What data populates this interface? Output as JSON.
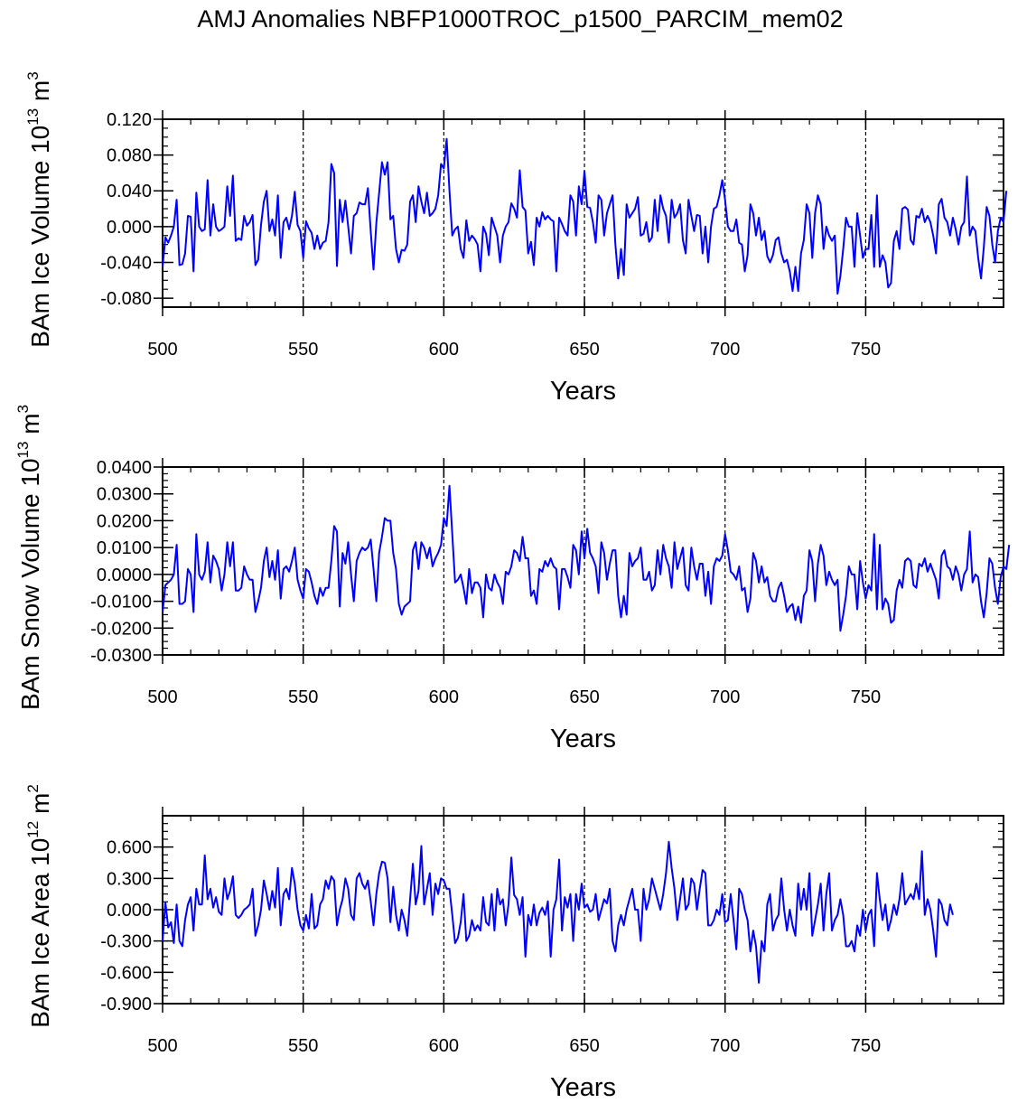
{
  "title": "AMJ Anomalies NBFP1000TROC_p1500_PARCIM_mem02",
  "colors": {
    "line": "#0000ff",
    "axis": "#000000",
    "background": "#ffffff"
  },
  "chart_data": [
    {
      "type": "line",
      "name": "ice-volume",
      "ylabel_main": "BAm Ice Volume 10",
      "ylabel_exp": "13",
      "ylabel_unit": " m",
      "ylabel_unit_exp": "3",
      "xlabel": "Years",
      "xlim": [
        500,
        799
      ],
      "ylim": [
        -0.09,
        0.12
      ],
      "yticks": [
        0.12,
        0.08,
        0.04,
        0.0,
        -0.04,
        -0.08
      ],
      "ytick_labels": [
        "0.120",
        "0.080",
        "0.040",
        "0.000",
        "-0.040",
        "-0.080"
      ],
      "xticks": [
        500,
        550,
        600,
        650,
        700,
        750
      ],
      "xtick_labels": [
        "500",
        "550",
        "600",
        "650",
        "700",
        "750"
      ],
      "vlines": [
        550,
        600,
        650,
        700,
        750
      ],
      "x_start": 500,
      "values": [
        -0.045,
        -0.012,
        -0.018,
        -0.01,
        0.0,
        0.03,
        -0.043,
        -0.042,
        -0.03,
        0.012,
        0.011,
        -0.05,
        0.038,
        0.0,
        -0.005,
        -0.003,
        0.052,
        -0.01,
        0.025,
        0.0,
        -0.005,
        -0.003,
        0.0,
        0.045,
        0.012,
        0.057,
        -0.016,
        -0.013,
        -0.015,
        0.012,
        0.001,
        0.005,
        0.013,
        -0.043,
        -0.037,
        0.002,
        0.028,
        0.04,
        -0.005,
        0.008,
        -0.01,
        0.035,
        -0.035,
        0.005,
        0.01,
        -0.003,
        0.012,
        0.039,
        0.002,
        -0.005,
        -0.035,
        0.006,
        -0.002,
        -0.007,
        -0.025,
        -0.01,
        -0.025,
        -0.018,
        -0.016,
        0.005,
        0.07,
        0.06,
        -0.044,
        0.03,
        0.005,
        0.029,
        0.0,
        -0.03,
        0.012,
        0.015,
        0.027,
        0.025,
        0.025,
        0.043,
        -0.005,
        -0.048,
        0.004,
        0.038,
        0.072,
        0.058,
        0.072,
        0.008,
        0.012,
        -0.025,
        -0.04,
        -0.026,
        -0.027,
        -0.02,
        0.028,
        0.035,
        0.005,
        0.045,
        0.028,
        0.015,
        0.038,
        0.012,
        0.015,
        0.02,
        0.035,
        0.07,
        0.065,
        0.098,
        0.04,
        -0.01,
        -0.003,
        0.0,
        -0.025,
        -0.035,
        0.007,
        -0.016,
        -0.01,
        -0.014,
        -0.02,
        -0.05,
        0.0,
        -0.008,
        -0.032,
        0.01,
        0.0,
        -0.01,
        -0.04,
        -0.01,
        0.0,
        0.005,
        0.026,
        0.02,
        0.01,
        0.063,
        0.022,
        0.018,
        -0.03,
        -0.017,
        -0.043,
        0.01,
        0.0,
        0.016,
        0.008,
        0.012,
        0.008,
        0.006,
        -0.05,
        0.01,
        0.003,
        -0.005,
        -0.01,
        0.035,
        0.028,
        -0.01,
        0.045,
        0.025,
        0.062,
        0.022,
        0.021,
        0.005,
        -0.018,
        0.035,
        0.03,
        -0.01,
        0.015,
        0.025,
        0.035,
        -0.02,
        -0.058,
        -0.025,
        -0.054,
        0.025,
        0.01,
        0.015,
        0.02,
        0.033,
        -0.01,
        -0.008,
        0.005,
        -0.017,
        -0.012,
        0.03,
        -0.005,
        0.035,
        0.02,
        0.012,
        -0.018,
        0.03,
        0.01,
        0.015,
        0.025,
        -0.015,
        -0.03,
        0.03,
        0.012,
        -0.005,
        0.013,
        0.012,
        -0.03,
        0.0,
        -0.04,
        0.0,
        0.02,
        0.022,
        0.035,
        0.052,
        0.03,
        0.0,
        -0.005,
        -0.005,
        0.008,
        -0.018,
        -0.02,
        -0.05,
        -0.032,
        0.025,
        0.015,
        -0.01,
        0.01,
        -0.015,
        -0.005,
        -0.033,
        -0.04,
        -0.032,
        -0.015,
        -0.012,
        -0.03,
        -0.04,
        -0.037,
        -0.05,
        -0.072,
        -0.045,
        -0.072,
        -0.03,
        -0.015,
        0.025,
        0.015,
        -0.035,
        0.015,
        0.035,
        0.025,
        -0.025,
        0.0,
        -0.01,
        -0.016,
        -0.01,
        -0.075,
        -0.055,
        -0.025,
        0.01,
        0.0,
        0.0,
        -0.045,
        0.015,
        -0.01,
        -0.035,
        -0.025,
        -0.025,
        0.013,
        -0.045,
        0.035,
        -0.045,
        -0.032,
        -0.04,
        -0.068,
        -0.063,
        -0.016,
        -0.005,
        -0.025,
        0.02,
        0.022,
        0.019,
        -0.015,
        -0.02,
        0.012,
        0.01,
        0.02,
        0.005,
        0.012,
        0.005,
        -0.01,
        -0.03,
        0.025,
        0.031,
        0.01,
        0.005,
        -0.01,
        0.01,
        -0.003,
        -0.02,
        0.0,
        0.005,
        0.056,
        -0.01,
        0.0,
        -0.005,
        -0.035,
        -0.058,
        -0.023,
        0.022,
        0.012,
        -0.02,
        -0.04,
        -0.005,
        0.01,
        0.005,
        0.04
      ]
    },
    {
      "type": "line",
      "name": "snow-volume",
      "ylabel_main": "BAm Snow Volume 10",
      "ylabel_exp": "13",
      "ylabel_unit": " m",
      "ylabel_unit_exp": "3",
      "xlabel": "Years",
      "xlim": [
        500,
        799
      ],
      "ylim": [
        -0.03,
        0.04
      ],
      "yticks": [
        0.04,
        0.03,
        0.02,
        0.01,
        0.0,
        -0.01,
        -0.02,
        -0.03
      ],
      "ytick_labels": [
        "0.0400",
        "0.0300",
        "0.0200",
        "0.0100",
        "0.0000",
        "-0.0100",
        "-0.0200",
        "-0.0300"
      ],
      "xticks": [
        500,
        550,
        600,
        650,
        700,
        750
      ],
      "xtick_labels": [
        "500",
        "550",
        "600",
        "650",
        "700",
        "750"
      ],
      "vlines": [
        550,
        600,
        650,
        700,
        750
      ],
      "x_start": 500,
      "values": [
        -0.014,
        -0.004,
        -0.003,
        -0.002,
        0.0,
        0.011,
        -0.011,
        -0.011,
        -0.01,
        0.002,
        0.0,
        -0.014,
        0.015,
        0.0,
        -0.002,
        0.001,
        0.012,
        -0.003,
        0.007,
        0.005,
        0.002,
        -0.006,
        0.0,
        0.012,
        0.003,
        0.012,
        -0.006,
        -0.006,
        -0.005,
        0.003,
        0.0,
        -0.002,
        -0.002,
        -0.014,
        -0.01,
        -0.005,
        0.005,
        0.01,
        -0.001,
        0.005,
        -0.002,
        0.009,
        -0.009,
        0.002,
        0.003,
        0.001,
        0.005,
        0.01,
        -0.002,
        -0.006,
        -0.009,
        0.002,
        0.001,
        -0.003,
        -0.008,
        -0.011,
        -0.005,
        -0.008,
        -0.005,
        -0.005,
        0.005,
        0.018,
        0.016,
        -0.012,
        0.008,
        0.004,
        0.012,
        0.0,
        -0.01,
        0.005,
        0.008,
        0.01,
        0.009,
        0.01,
        0.013,
        0.002,
        -0.01,
        0.008,
        0.014,
        0.021,
        0.02,
        0.02,
        0.008,
        0.002,
        -0.011,
        -0.015,
        -0.012,
        -0.011,
        -0.01,
        0.009,
        0.012,
        0.002,
        0.012,
        0.01,
        0.006,
        0.01,
        0.003,
        0.006,
        0.008,
        0.011,
        0.021,
        0.018,
        0.033,
        0.015,
        -0.003,
        -0.002,
        0.0,
        -0.005,
        -0.011,
        0.002,
        -0.007,
        -0.003,
        -0.003,
        -0.005,
        -0.016,
        0.0,
        -0.005,
        -0.006,
        0.0,
        -0.003,
        -0.005,
        -0.011,
        0.001,
        0.0,
        0.003,
        0.009,
        0.008,
        0.005,
        0.014,
        0.006,
        0.006,
        -0.008,
        -0.006,
        -0.011,
        0.002,
        0.001,
        0.005,
        0.003,
        0.006,
        0.003,
        0.002,
        -0.013,
        0.002,
        0.002,
        -0.001,
        -0.005,
        0.011,
        0.009,
        0.0,
        0.016,
        0.006,
        0.017,
        0.008,
        0.006,
        0.003,
        -0.007,
        0.012,
        0.008,
        -0.002,
        0.004,
        0.009,
        0.009,
        -0.008,
        -0.016,
        -0.008,
        -0.015,
        0.008,
        0.003,
        0.005,
        0.006,
        0.01,
        -0.002,
        -0.002,
        0.001,
        -0.006,
        -0.004,
        0.009,
        0.0,
        0.011,
        0.006,
        0.003,
        -0.005,
        0.012,
        0.002,
        0.006,
        0.01,
        -0.004,
        -0.006,
        0.01,
        0.003,
        -0.002,
        0.004,
        0.004,
        -0.008,
        0.001,
        -0.011,
        0.003,
        0.006,
        0.005,
        0.007,
        0.015,
        0.009,
        0.001,
        0.0,
        -0.002,
        0.003,
        -0.006,
        -0.005,
        -0.014,
        -0.009,
        0.008,
        0.005,
        -0.003,
        0.003,
        -0.003,
        -0.001,
        -0.008,
        -0.01,
        -0.01,
        -0.005,
        -0.003,
        -0.008,
        -0.014,
        -0.012,
        -0.011,
        -0.017,
        -0.012,
        -0.018,
        -0.008,
        -0.006,
        0.009,
        0.005,
        -0.01,
        0.004,
        0.011,
        0.007,
        -0.004,
        0.001,
        -0.002,
        -0.004,
        -0.002,
        -0.021,
        -0.015,
        -0.008,
        0.003,
        0.0,
        0.0,
        -0.013,
        0.005,
        -0.003,
        -0.009,
        -0.004,
        -0.006,
        0.015,
        -0.013,
        0.011,
        -0.013,
        -0.009,
        -0.011,
        -0.018,
        -0.017,
        -0.006,
        -0.002,
        -0.005,
        0.005,
        0.006,
        0.005,
        -0.004,
        -0.005,
        0.004,
        0.003,
        0.006,
        0.001,
        0.004,
        0.001,
        -0.002,
        -0.009,
        0.007,
        0.009,
        0.003,
        0.002,
        -0.002,
        0.003,
        0.0,
        -0.006,
        0.0,
        0.002,
        0.016,
        -0.003,
        0.0,
        -0.001,
        -0.01,
        -0.016,
        -0.007,
        0.006,
        0.004,
        -0.005,
        -0.011,
        -0.001,
        0.003,
        0.002,
        0.011
      ]
    },
    {
      "type": "line",
      "name": "ice-area",
      "ylabel_main": "BAm Ice Area 10",
      "ylabel_exp": "12",
      "ylabel_unit": " m",
      "ylabel_unit_exp": "2",
      "xlabel": "Years",
      "xlim": [
        500,
        799
      ],
      "ylim": [
        -0.9,
        0.9
      ],
      "yticks": [
        0.6,
        0.3,
        0.0,
        -0.3,
        -0.6,
        -0.9
      ],
      "ytick_labels": [
        "0.600",
        "0.300",
        "0.000",
        "-0.300",
        "-0.600",
        "-0.900"
      ],
      "xticks": [
        500,
        550,
        600,
        650,
        700,
        750
      ],
      "xtick_labels": [
        "500",
        "550",
        "600",
        "650",
        "700",
        "750"
      ],
      "vlines": [
        550,
        600,
        650,
        700,
        750
      ],
      "x_start": 500,
      "values": [
        -0.3,
        0.07,
        -0.17,
        -0.12,
        -0.32,
        0.05,
        -0.3,
        -0.35,
        -0.1,
        0.05,
        0.12,
        -0.2,
        0.2,
        0.05,
        0.05,
        0.52,
        0.1,
        0.2,
        0.02,
        0.12,
        -0.02,
        -0.05,
        0.3,
        0.1,
        0.18,
        0.32,
        -0.05,
        -0.08,
        -0.05,
        0.0,
        0.02,
        0.05,
        0.2,
        -0.25,
        -0.15,
        0.0,
        0.28,
        0.15,
        0.0,
        0.18,
        0.02,
        0.4,
        -0.15,
        0.15,
        0.2,
        0.1,
        0.4,
        0.25,
        0.0,
        -0.15,
        -0.2,
        -0.05,
        -0.18,
        0.15,
        -0.18,
        -0.15,
        0.05,
        0.1,
        0.28,
        0.2,
        0.32,
        0.28,
        -0.15,
        0.0,
        0.1,
        0.3,
        0.2,
        -0.05,
        -0.1,
        0.3,
        0.35,
        0.25,
        0.2,
        0.28,
        0.08,
        -0.15,
        0.15,
        0.35,
        0.46,
        0.45,
        0.3,
        -0.12,
        0.22,
        -0.05,
        -0.2,
        0.0,
        -0.1,
        -0.25,
        0.1,
        0.44,
        0.05,
        0.18,
        0.61,
        0.05,
        0.2,
        0.35,
        -0.05,
        0.25,
        0.15,
        0.3,
        0.28,
        0.2,
        0.2,
        -0.05,
        -0.32,
        -0.27,
        -0.12,
        0.15,
        -0.3,
        -0.25,
        -0.1,
        -0.2,
        -0.15,
        -0.2,
        0.12,
        -0.12,
        -0.15,
        0.15,
        -0.2,
        0.2,
        0.05,
        0.1,
        -0.15,
        0.05,
        0.5,
        0.14,
        0.1,
        -0.05,
        0.12,
        -0.45,
        -0.05,
        -0.15,
        0.05,
        -0.15,
        -0.03,
        0.02,
        -0.05,
        0.08,
        -0.45,
        0.0,
        0.1,
        0.48,
        -0.2,
        0.12,
        0.02,
        0.15,
        -0.3,
        0.15,
        0.0,
        0.25,
        0.02,
        0.05,
        -0.02,
        0.0,
        0.15,
        -0.1,
        0.0,
        0.1,
        0.06,
        0.2,
        -0.3,
        -0.4,
        -0.15,
        -0.05,
        -0.15,
        0.0,
        0.1,
        0.2,
        0.0,
        0.0,
        -0.3,
        0.2,
        0.0,
        0.1,
        0.3,
        0.2,
        0.1,
        0.0,
        0.15,
        0.35,
        0.65,
        0.4,
        0.2,
        -0.1,
        0.1,
        0.3,
        0.0,
        0.05,
        0.3,
        0.25,
        0.0,
        0.2,
        0.38,
        0.35,
        -0.15,
        -0.15,
        -0.1,
        0.0,
        -0.05,
        0.15,
        -0.12,
        -0.1,
        0.15,
        -0.1,
        -0.38,
        0.2,
        0.15,
        0.0,
        -0.1,
        -0.4,
        -0.2,
        -0.35,
        -0.7,
        -0.3,
        -0.4,
        0.05,
        0.15,
        -0.2,
        -0.1,
        -0.05,
        0.3,
        0.0,
        -0.2,
        0.0,
        -0.15,
        -0.25,
        0.25,
        0.0,
        0.2,
        0.0,
        0.35,
        -0.25,
        -0.1,
        0.05,
        0.25,
        -0.2,
        0.15,
        0.35,
        -0.2,
        -0.1,
        -0.05,
        0.1,
        -0.05,
        -0.35,
        -0.35,
        -0.3,
        -0.4,
        -0.15,
        -0.25,
        0.0,
        -0.2,
        -0.05,
        0.0,
        -0.35,
        0.35,
        0.1,
        -0.1,
        0.05,
        -0.2,
        -0.1,
        0.05,
        -0.05,
        0.1,
        0.35,
        0.05,
        0.1,
        0.15,
        0.1,
        0.25,
        0.1,
        0.56,
        -0.05,
        0.1,
        0.0,
        -0.2,
        -0.45,
        0.1,
        0.05,
        -0.1,
        -0.15,
        0.05,
        -0.05
      ]
    }
  ]
}
